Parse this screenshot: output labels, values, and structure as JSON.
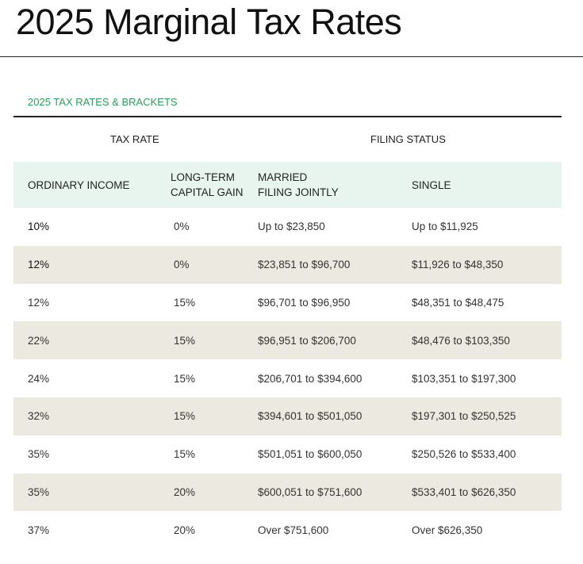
{
  "title": {
    "light": "2025 Marginal",
    "bold": "Tax Rates"
  },
  "subtitle": "2025 TAX RATES & BRACKETS",
  "groups": {
    "tax_rate": "TAX RATE",
    "filing_status": "FILING STATUS"
  },
  "columns": [
    "ORDINARY INCOME",
    [
      "LONG-TERM",
      "CAPITAL GAIN"
    ],
    [
      "MARRIED",
      "FILING JOINTLY"
    ],
    "SINGLE"
  ],
  "rows": [
    [
      "10%",
      "0%",
      "Up to $23,850",
      "Up to $11,925"
    ],
    [
      "12%",
      "0%",
      "$23,851 to $96,700",
      "$11,926 to $48,350"
    ],
    [
      "12%",
      "15%",
      "$96,701 to $96,950",
      "$48,351 to $48,475"
    ],
    [
      "22%",
      "15%",
      "$96,951 to $206,700",
      "$48,476 to $103,350"
    ],
    [
      "24%",
      "15%",
      "$206,701 to $394,600",
      "$103,351 to $197,300"
    ],
    [
      "32%",
      "15%",
      "$394,601 to $501,050",
      "$197,301 to $250,525"
    ],
    [
      "35%",
      "15%",
      "$501,051 to $600,050",
      "$250,526 to $533,400"
    ],
    [
      "35%",
      "20%",
      "$600,051 to $751,600",
      "$533,401 to $626,350"
    ],
    [
      "37%",
      "20%",
      "Over $751,600",
      "Over $626,350"
    ]
  ],
  "colors": {
    "accent": "#2a9d5c",
    "header_bg": "#e8f5ee",
    "alt_row": "#ece9e0"
  }
}
